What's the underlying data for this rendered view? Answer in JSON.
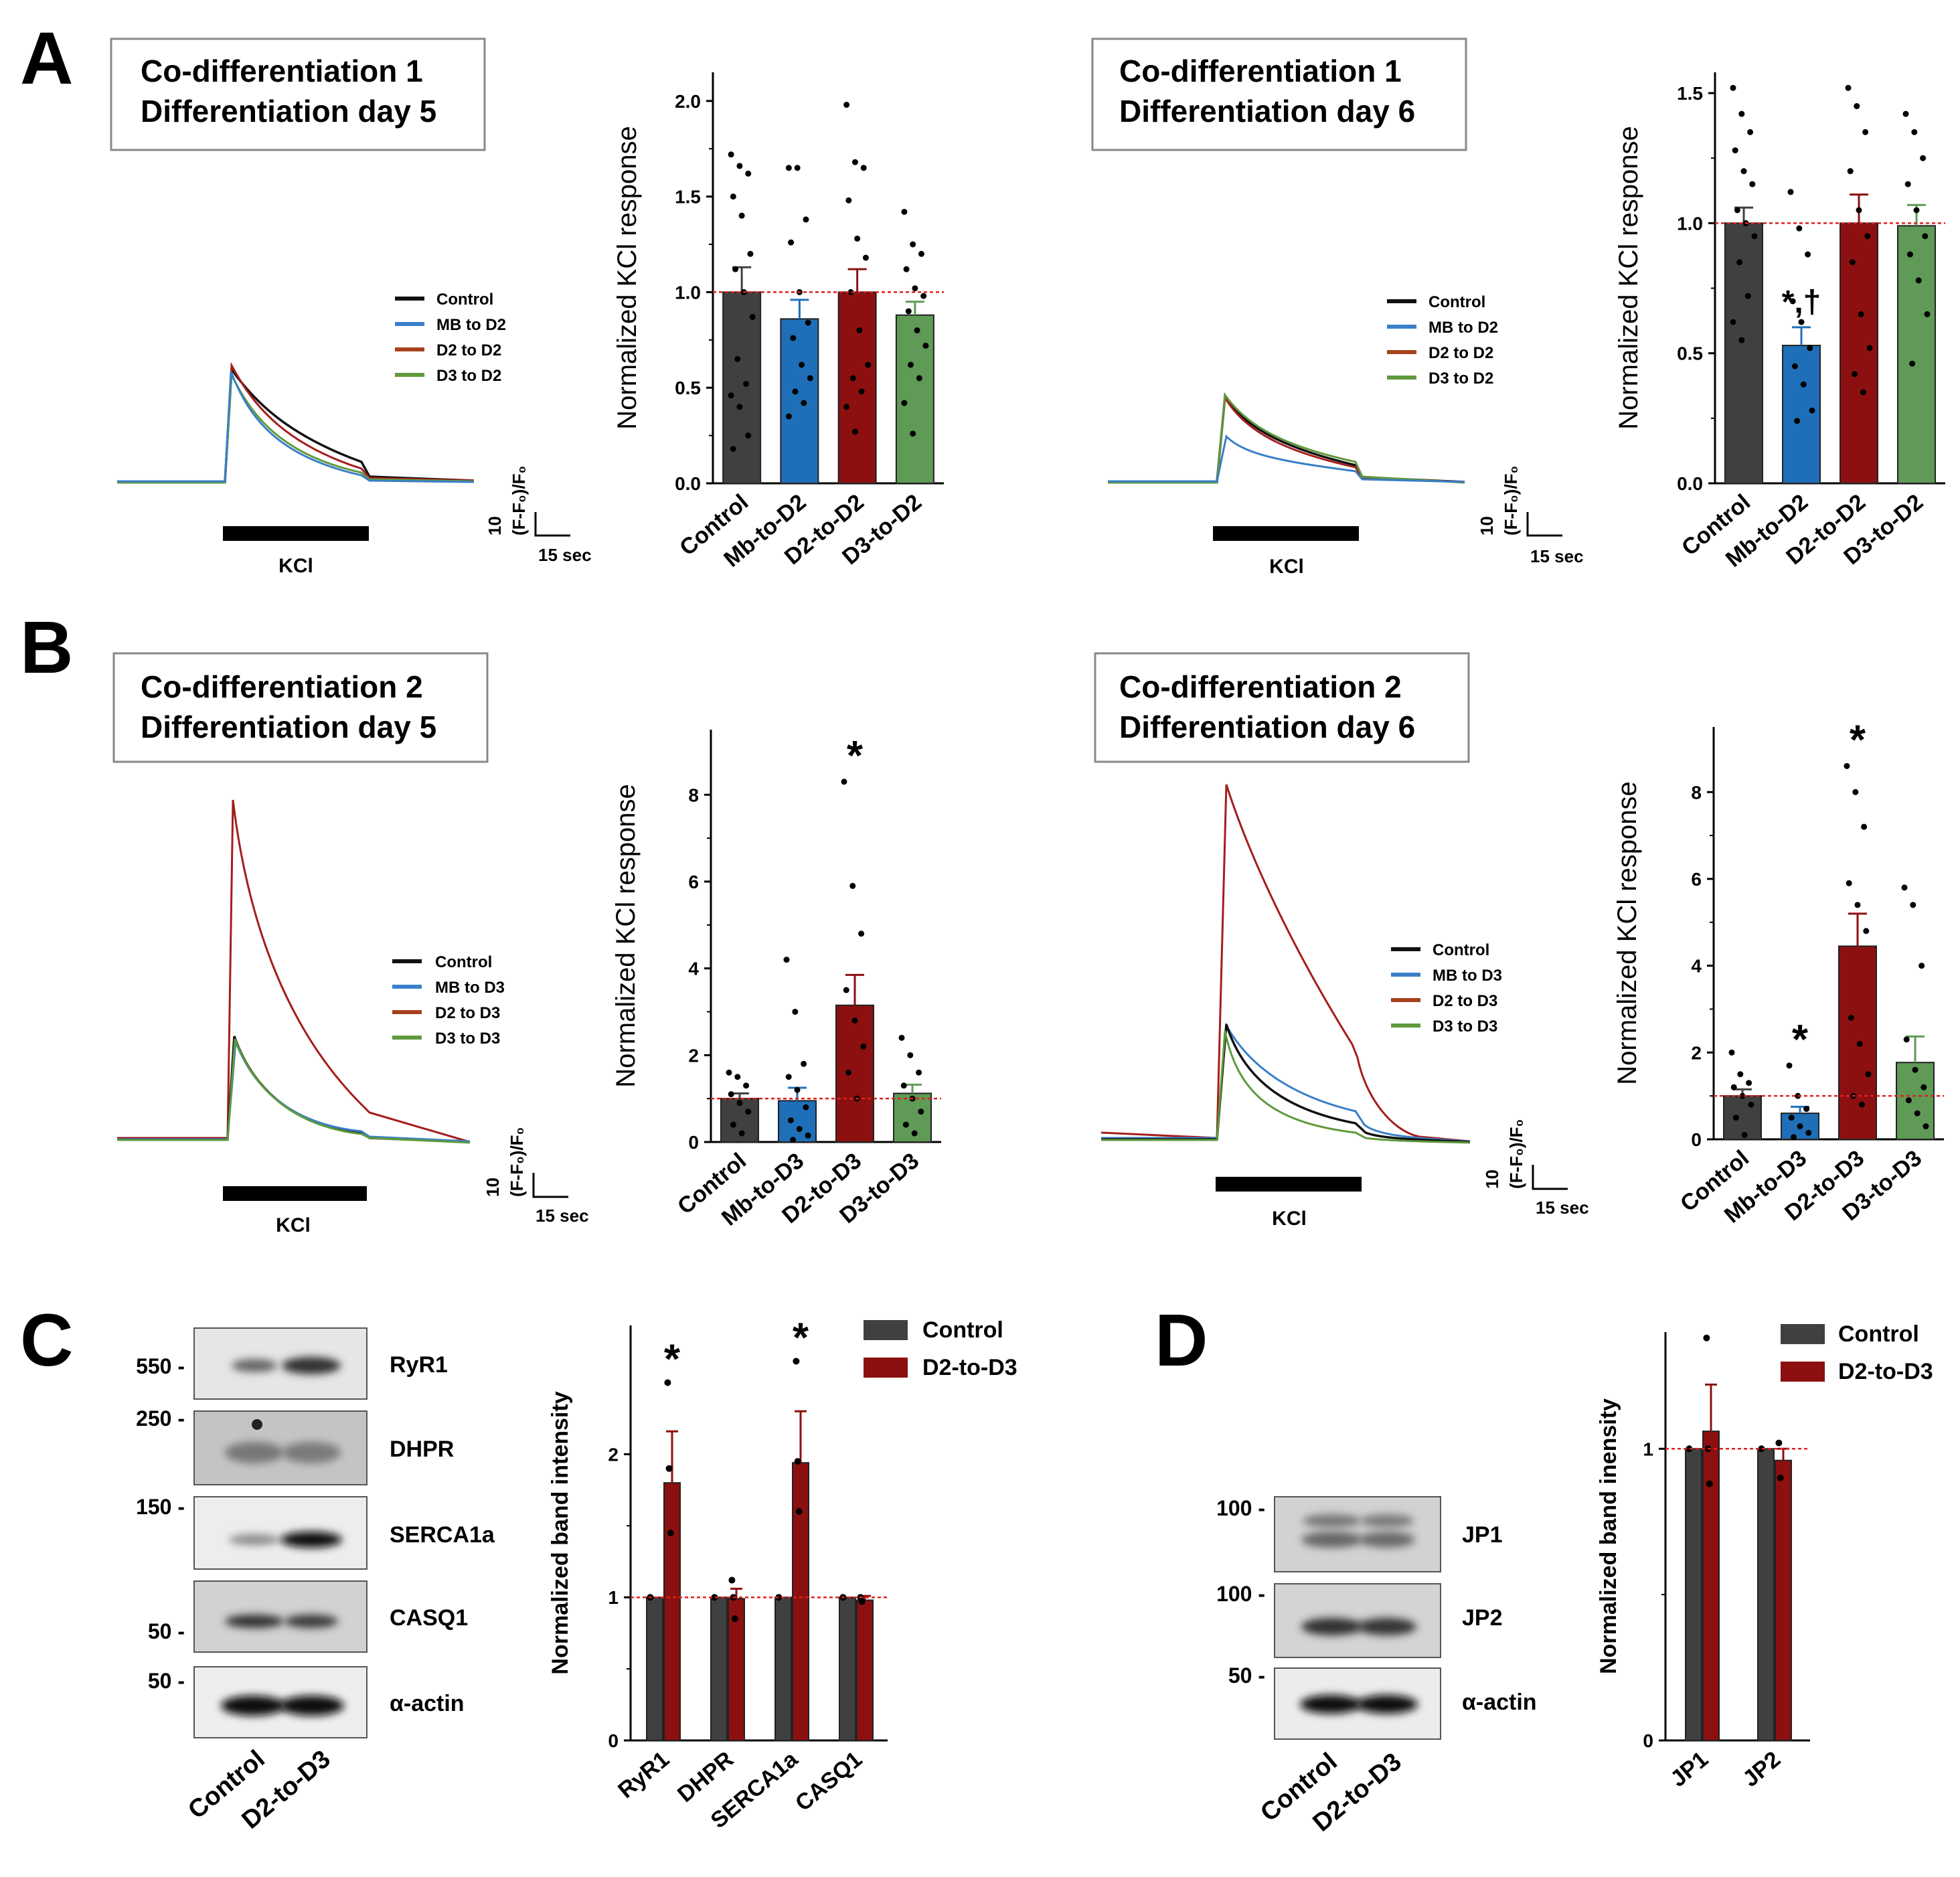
{
  "panels": {
    "A": "A",
    "B": "B",
    "C": "C",
    "D": "D"
  },
  "colors": {
    "control": "#404040",
    "mb": "#1f6fb8",
    "d2": "#8c1010",
    "d3": "#5f9a56",
    "trace_control": "#111111",
    "trace_mb": "#3a7fc8",
    "trace_d2": "#a51d1d",
    "trace_d3": "#5f9a3c",
    "ref_line": "#e02020"
  },
  "boxes": {
    "a5": {
      "line1": "Co-differentiation  1",
      "line2": "Differentiation  day  5"
    },
    "a6": {
      "line1": "Co-differentiation  1",
      "line2": "Differentiation  day  6"
    },
    "b5": {
      "line1": "Co-differentiation  2",
      "line2": "Differentiation  day  5"
    },
    "b6": {
      "line1": "Co-differentiation  2",
      "line2": "Differentiation  day  6"
    }
  },
  "trace_legends": {
    "A": [
      "Control",
      "MB to D2",
      "D2 to D2",
      "D3 to D2"
    ],
    "B": [
      "Control",
      "MB to D3",
      "D2 to D3",
      "D3 to D3"
    ]
  },
  "stim_label": "KCl",
  "scale": {
    "y": "10",
    "y_units": "(F-F₀)/F₀",
    "x": "15 sec"
  },
  "chart_data": [
    {
      "id": "A5",
      "type": "bar",
      "ylabel": "Normalized KCl response",
      "categories": [
        "Control",
        "Mb-to-D2",
        "D2-to-D2",
        "D3-to-D2"
      ],
      "values": [
        1.0,
        0.86,
        1.0,
        0.88
      ],
      "errors": [
        0.13,
        0.1,
        0.12,
        0.07
      ],
      "ylim": [
        0,
        2.15
      ],
      "yticks": [
        0.0,
        0.5,
        1.0,
        1.5,
        2.0
      ],
      "ytick_labels": [
        "0.0",
        "0.5",
        "1.0",
        "1.5",
        "2.0"
      ],
      "dots": [
        [
          1.72,
          1.66,
          1.62,
          1.5,
          1.4,
          1.2,
          1.12,
          1.0,
          0.87,
          0.65,
          0.52,
          0.46,
          0.4,
          0.25,
          0.18
        ],
        [
          1.65,
          1.65,
          1.38,
          1.26,
          1.0,
          0.84,
          0.76,
          0.62,
          0.55,
          0.48,
          0.42,
          0.35
        ],
        [
          1.98,
          1.68,
          1.65,
          1.48,
          1.28,
          1.18,
          1.0,
          0.8,
          0.62,
          0.55,
          0.48,
          0.4,
          0.27
        ],
        [
          1.42,
          1.25,
          1.2,
          1.12,
          1.02,
          0.98,
          0.9,
          0.8,
          0.72,
          0.62,
          0.55,
          0.42,
          0.26
        ]
      ],
      "annotations": [
        "",
        "",
        "",
        ""
      ]
    },
    {
      "id": "A6",
      "type": "bar",
      "ylabel": "Normalized KCl response",
      "categories": [
        "Control",
        "Mb-to-D2",
        "D2-to-D2",
        "D3-to-D2"
      ],
      "values": [
        1.0,
        0.53,
        1.0,
        0.99
      ],
      "errors": [
        0.06,
        0.07,
        0.11,
        0.08
      ],
      "ylim": [
        0,
        1.58
      ],
      "yticks": [
        0.0,
        0.5,
        1.0,
        1.5
      ],
      "ytick_labels": [
        "0.0",
        "0.5",
        "1.0",
        "1.5"
      ],
      "dots": [
        [
          1.52,
          1.42,
          1.35,
          1.28,
          1.2,
          1.15,
          1.05,
          1.0,
          0.95,
          0.85,
          0.72,
          0.62,
          0.55
        ],
        [
          1.12,
          0.98,
          0.88,
          0.7,
          0.62,
          0.52,
          0.45,
          0.38,
          0.28,
          0.24
        ],
        [
          1.52,
          1.45,
          1.35,
          1.2,
          1.05,
          0.95,
          0.85,
          0.65,
          0.52,
          0.42,
          0.35
        ],
        [
          1.42,
          1.35,
          1.25,
          1.15,
          1.05,
          0.95,
          0.88,
          0.78,
          0.65,
          0.46
        ]
      ],
      "annotations": [
        "",
        "*,†",
        "",
        ""
      ]
    },
    {
      "id": "B5",
      "type": "bar",
      "ylabel": "Normalized KCl response",
      "categories": [
        "Control",
        "Mb-to-D3",
        "D2-to-D3",
        "D3-to-D3"
      ],
      "values": [
        1.0,
        0.95,
        3.15,
        1.12
      ],
      "errors": [
        0.12,
        0.3,
        0.7,
        0.2
      ],
      "ylim": [
        0,
        9.5
      ],
      "yticks": [
        0,
        2,
        4,
        6,
        8
      ],
      "ytick_labels": [
        "0",
        "2",
        "4",
        "6",
        "8"
      ],
      "dots": [
        [
          1.6,
          1.5,
          1.3,
          1.1,
          0.9,
          0.7,
          0.4,
          0.2
        ],
        [
          4.2,
          3.0,
          1.8,
          1.5,
          1.2,
          0.8,
          0.5,
          0.3,
          0.15,
          0.05
        ],
        [
          8.3,
          5.9,
          4.8,
          3.5,
          2.8,
          2.2,
          1.6,
          1.0
        ],
        [
          2.4,
          2.0,
          1.6,
          1.3,
          1.0,
          0.7,
          0.4,
          0.2
        ]
      ],
      "annotations": [
        "",
        "",
        "*",
        ""
      ]
    },
    {
      "id": "B6",
      "type": "bar",
      "ylabel": "Normalized KCl response",
      "categories": [
        "Control",
        "Mb-to-D3",
        "D2-to-D3",
        "D3-to-D3"
      ],
      "values": [
        1.0,
        0.6,
        4.45,
        1.77
      ],
      "errors": [
        0.15,
        0.15,
        0.75,
        0.6
      ],
      "ylim": [
        0,
        9.5
      ],
      "yticks": [
        0,
        2,
        4,
        6,
        8
      ],
      "ytick_labels": [
        "0",
        "2",
        "4",
        "6",
        "8"
      ],
      "dots": [
        [
          2.0,
          1.5,
          1.3,
          1.2,
          1.0,
          0.8,
          0.5,
          0.1
        ],
        [
          1.7,
          1.0,
          0.7,
          0.5,
          0.3,
          0.15,
          0.05
        ],
        [
          8.6,
          8.0,
          7.2,
          5.9,
          5.4,
          4.8,
          2.8,
          2.2,
          1.5,
          1.0,
          0.8
        ],
        [
          5.8,
          5.4,
          4.0,
          2.3,
          1.6,
          1.2,
          0.9,
          0.6,
          0.3
        ]
      ],
      "annotations": [
        "",
        "*",
        "*",
        ""
      ]
    },
    {
      "id": "C",
      "type": "bar",
      "ylabel": "Normalized band intensity",
      "categories": [
        "RyR1",
        "DHPR",
        "SERCA1a",
        "CASQ1"
      ],
      "series": [
        {
          "name": "Control",
          "values": [
            1.0,
            1.0,
            1.0,
            1.0
          ],
          "errors": [
            0,
            0,
            0,
            0
          ]
        },
        {
          "name": "D2-to-D3",
          "values": [
            1.8,
            0.99,
            1.94,
            0.98
          ],
          "errors": [
            0.36,
            0.07,
            0.36,
            0.03
          ]
        }
      ],
      "ylim": [
        0,
        2.9
      ],
      "yticks": [
        0,
        1,
        2
      ],
      "ytick_labels": [
        "0",
        "1",
        "2"
      ],
      "dots": [
        [
          [
            1.0
          ],
          [
            2.5,
            1.9,
            1.45
          ]
        ],
        [
          [
            1.0
          ],
          [
            1.12,
            1.0,
            0.85
          ]
        ],
        [
          [
            1.0
          ],
          [
            2.65,
            1.95,
            1.6
          ]
        ],
        [
          [
            1.0
          ],
          [
            1.0,
            0.97
          ]
        ]
      ],
      "annotations": [
        "*",
        "",
        "*",
        ""
      ]
    },
    {
      "id": "D",
      "type": "bar",
      "ylabel": "Normalized band inensity",
      "categories": [
        "JP1",
        "JP2"
      ],
      "series": [
        {
          "name": "Control",
          "values": [
            1.0,
            1.0
          ],
          "errors": [
            0,
            0
          ]
        },
        {
          "name": "D2-to-D3",
          "values": [
            1.06,
            0.96
          ],
          "errors": [
            0.16,
            0.04
          ]
        }
      ],
      "ylim": [
        0,
        1.4
      ],
      "yticks": [
        0,
        1
      ],
      "ytick_labels": [
        "0",
        "1"
      ],
      "dots": [
        [
          [
            1.0
          ],
          [
            1.38,
            1.0,
            0.88
          ]
        ],
        [
          [
            1.0
          ],
          [
            1.02,
            0.9
          ]
        ]
      ],
      "annotations": [
        "",
        ""
      ]
    }
  ],
  "blot_C": {
    "bands": [
      "RyR1",
      "DHPR",
      "SERCA1a",
      "CASQ1",
      "α-actin"
    ],
    "markers": [
      "550 -",
      "250 -",
      "150 -",
      "50 -",
      "50 -"
    ],
    "lanes": [
      "Control",
      "D2-to-D3"
    ]
  },
  "blot_D": {
    "bands": [
      "JP1",
      "JP2",
      "α-actin"
    ],
    "markers": [
      "100 -",
      "100 -",
      "50 -"
    ],
    "lanes": [
      "Control",
      "D2-to-D3"
    ]
  },
  "legend_C": [
    "Control",
    "D2-to-D3"
  ],
  "legend_D": [
    "Control",
    "D2-to-D3"
  ]
}
